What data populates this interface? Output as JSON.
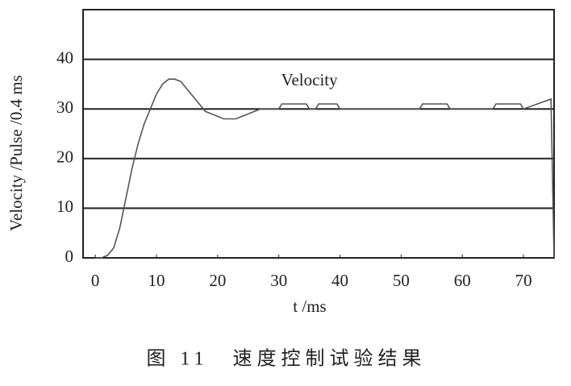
{
  "chart_data": {
    "type": "line",
    "x_label": "t /ms",
    "y_label": "Velocity /Pulse /0.4 ms",
    "caption": "图 11　速度控制试验结果",
    "x": [
      0,
      1,
      2,
      3,
      4,
      5,
      6,
      7,
      8,
      9,
      10,
      11,
      12,
      13,
      14,
      15,
      16,
      17,
      18,
      19,
      20,
      21,
      22,
      23,
      24,
      25,
      26,
      27,
      30,
      30.5,
      34.5,
      35,
      36,
      36.5,
      39.5,
      40,
      53,
      53.5,
      57.5,
      58,
      65,
      65.5,
      69.5,
      70,
      74.5,
      75
    ],
    "series": [
      {
        "name": "Velocity",
        "color": "#555555",
        "values": [
          0,
          0,
          0.5,
          2,
          6,
          12,
          18,
          23,
          27,
          30,
          33,
          35,
          36,
          36,
          35.5,
          34,
          32.5,
          31,
          29.5,
          29,
          28.5,
          28,
          28,
          28,
          28.5,
          29,
          29.5,
          30,
          30,
          31,
          31,
          30,
          30,
          31,
          31,
          30,
          30,
          31,
          31,
          30,
          30,
          31,
          31,
          30,
          32,
          0
        ]
      }
    ],
    "xlim": [
      -2,
      75
    ],
    "ylim": [
      0,
      50
    ],
    "xticks": [
      0,
      10,
      20,
      30,
      40,
      50,
      60,
      70
    ],
    "yticks": [
      0,
      10,
      20,
      30,
      40
    ],
    "grid": true
  }
}
